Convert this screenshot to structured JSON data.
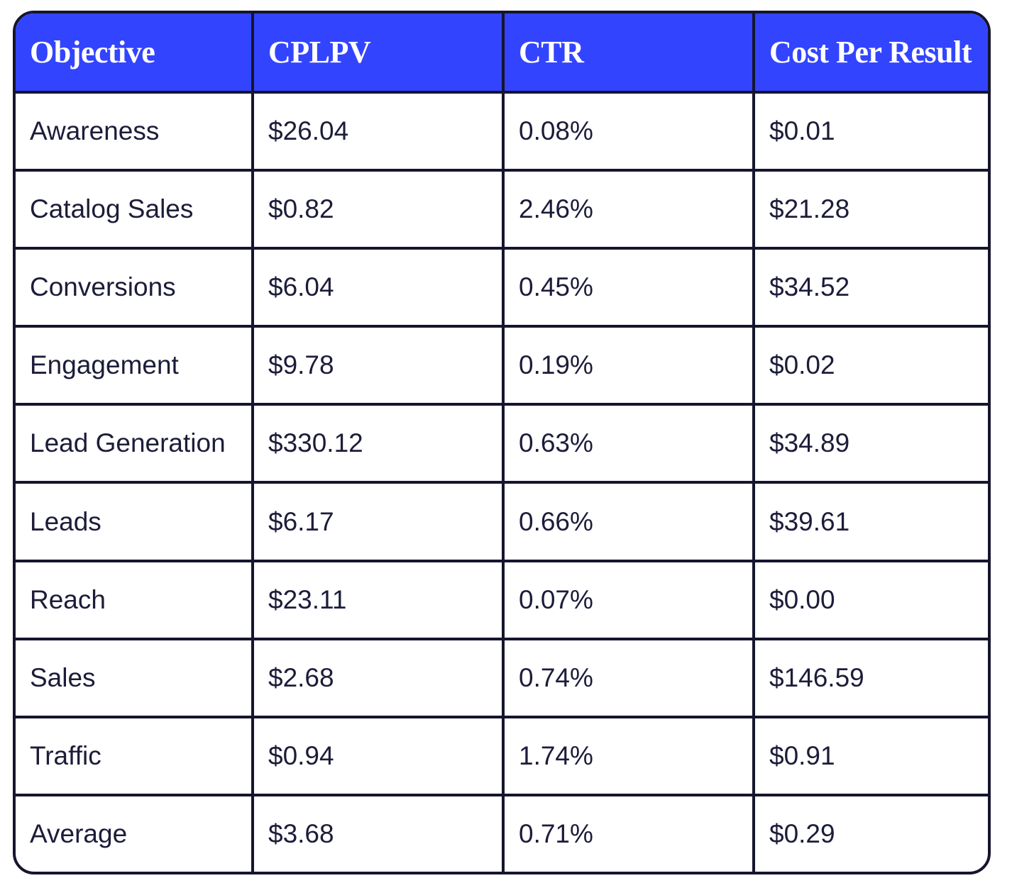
{
  "table": {
    "headers": [
      "Objective",
      "CPLPV",
      "CTR",
      "Cost Per Result"
    ],
    "rows": [
      [
        "Awareness",
        "$26.04",
        "0.08%",
        "$0.01"
      ],
      [
        "Catalog Sales",
        "$0.82",
        "2.46%",
        "$21.28"
      ],
      [
        "Conversions",
        "$6.04",
        "0.45%",
        "$34.52"
      ],
      [
        "Engagement",
        "$9.78",
        "0.19%",
        "$0.02"
      ],
      [
        "Lead Generation",
        "$330.12",
        "0.63%",
        "$34.89"
      ],
      [
        "Leads",
        "$6.17",
        "0.66%",
        "$39.61"
      ],
      [
        "Reach",
        "$23.11",
        "0.07%",
        "$0.00"
      ],
      [
        "Sales",
        "$2.68",
        "0.74%",
        "$146.59"
      ],
      [
        "Traffic",
        "$0.94",
        "1.74%",
        "$0.91"
      ],
      [
        "Average",
        "$3.68",
        "0.71%",
        "$0.29"
      ]
    ]
  }
}
